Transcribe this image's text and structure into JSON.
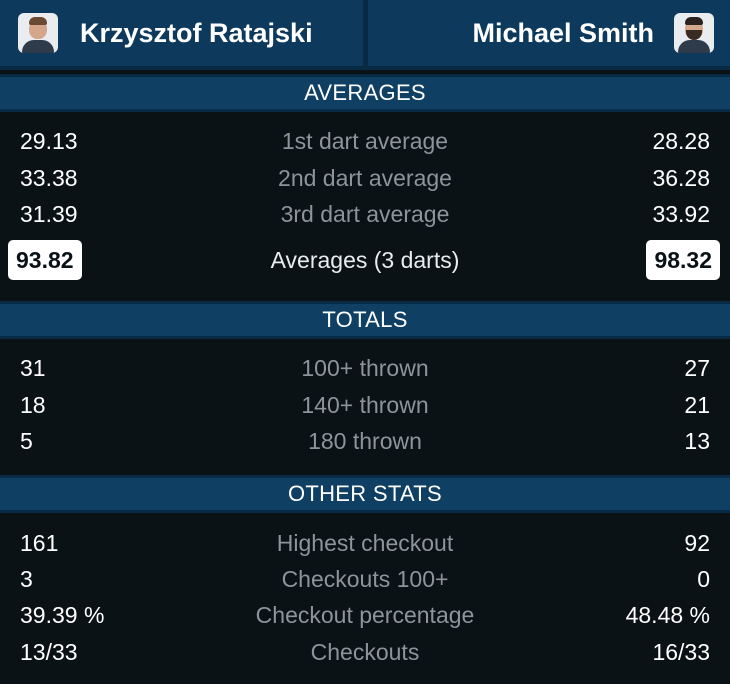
{
  "players": {
    "left": {
      "name": "Krzysztof Ratajski"
    },
    "right": {
      "name": "Michael Smith"
    }
  },
  "sections": {
    "averages": {
      "title": "AVERAGES",
      "rows": [
        {
          "label": "1st dart average",
          "left": "29.13",
          "right": "28.28"
        },
        {
          "label": "2nd dart average",
          "left": "33.38",
          "right": "36.28"
        },
        {
          "label": "3rd dart average",
          "left": "31.39",
          "right": "33.92"
        },
        {
          "label": "Averages (3 darts)",
          "left": "93.82",
          "right": "98.32"
        }
      ]
    },
    "totals": {
      "title": "TOTALS",
      "rows": [
        {
          "label": "100+ thrown",
          "left": "31",
          "right": "27"
        },
        {
          "label": "140+ thrown",
          "left": "18",
          "right": "21"
        },
        {
          "label": "180 thrown",
          "left": "5",
          "right": "13"
        }
      ]
    },
    "other": {
      "title": "OTHER STATS",
      "rows": [
        {
          "label": "Highest checkout",
          "left": "161",
          "right": "92"
        },
        {
          "label": "Checkouts 100+",
          "left": "3",
          "right": "0"
        },
        {
          "label": "Checkout percentage",
          "left": "39.39 %",
          "right": "48.48 %"
        },
        {
          "label": "Checkouts",
          "left": "13/33",
          "right": "16/33"
        }
      ]
    }
  }
}
